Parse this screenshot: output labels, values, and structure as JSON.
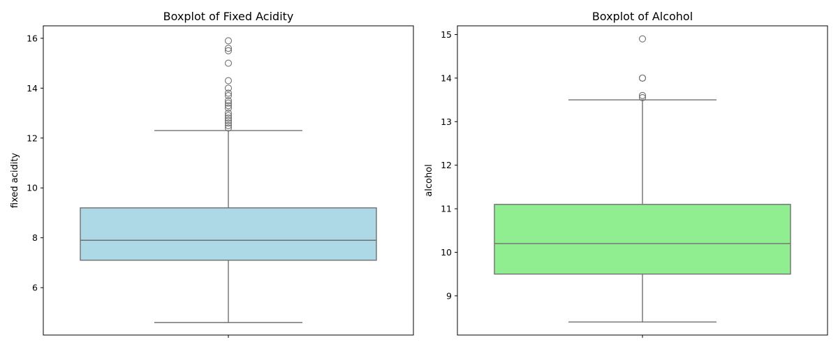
{
  "chart_data": [
    {
      "type": "box",
      "title": "Boxplot of Fixed Acidity",
      "xlabel": "",
      "ylabel": "fixed acidity",
      "ylim": [
        4.1,
        16.5
      ],
      "yticks": [
        6,
        8,
        10,
        12,
        14,
        16
      ],
      "grid": false,
      "box": {
        "whisker_low": 4.6,
        "q1": 7.1,
        "median": 7.9,
        "q3": 9.2,
        "whisker_high": 12.3,
        "fill": "#add8e6",
        "outliers": [
          12.4,
          12.5,
          12.6,
          12.7,
          12.8,
          12.9,
          13.0,
          13.2,
          13.3,
          13.4,
          13.5,
          13.7,
          13.8,
          14.0,
          14.3,
          15.0,
          15.5,
          15.6,
          15.9
        ]
      }
    },
    {
      "type": "box",
      "title": "Boxplot of Alcohol",
      "xlabel": "",
      "ylabel": "alcohol",
      "ylim": [
        8.1,
        15.2
      ],
      "yticks": [
        9,
        10,
        11,
        12,
        13,
        14,
        15
      ],
      "grid": false,
      "box": {
        "whisker_low": 8.4,
        "q1": 9.5,
        "median": 10.2,
        "q3": 11.1,
        "whisker_high": 13.5,
        "fill": "#90ee90",
        "outliers": [
          13.55,
          13.6,
          14.0,
          14.0,
          14.9
        ]
      }
    }
  ],
  "colors": {
    "line": "#707070",
    "outlier_edge": "#707070",
    "axis": "#000000"
  }
}
